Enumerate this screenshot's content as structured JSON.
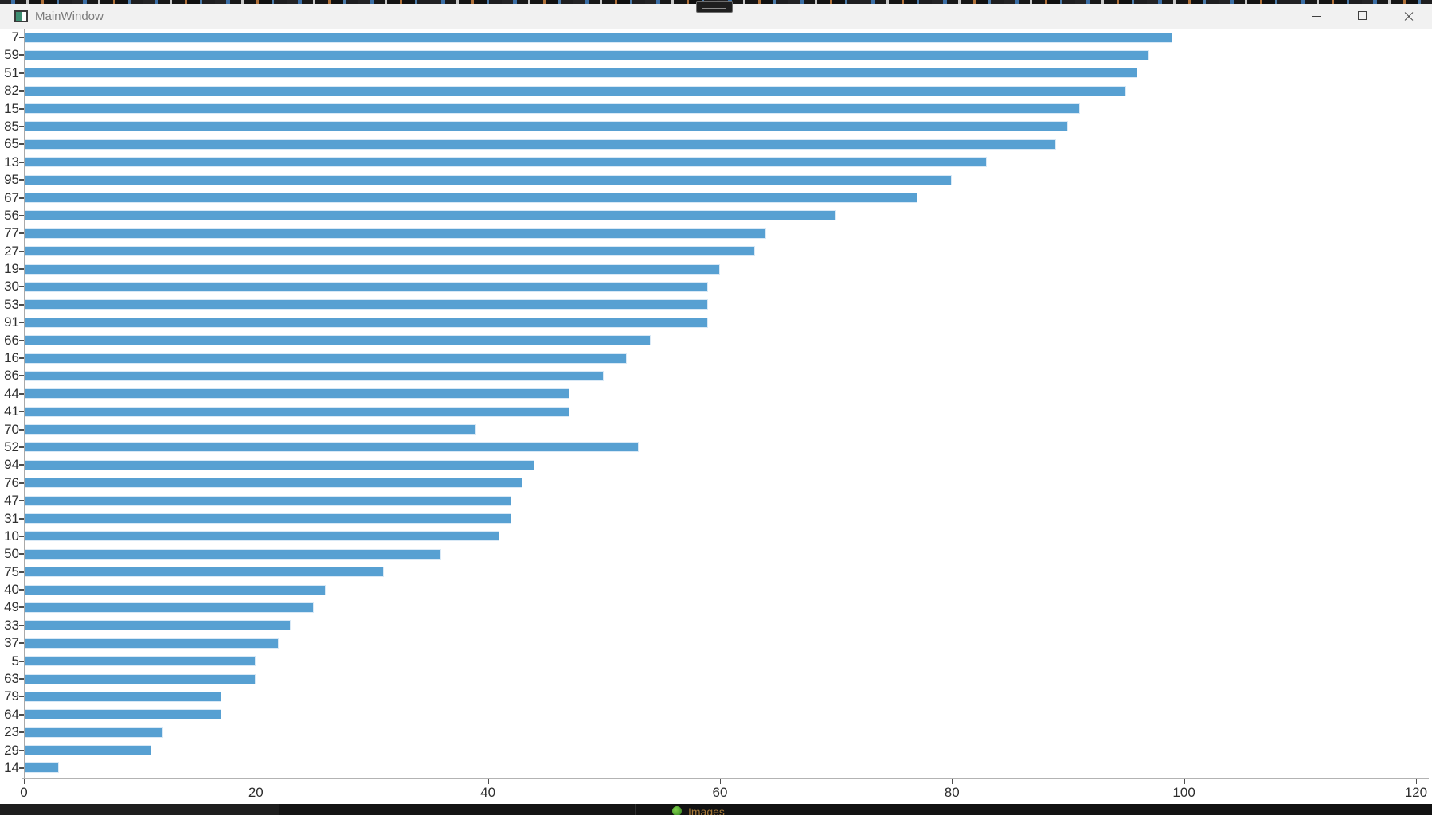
{
  "window": {
    "title": "MainWindow",
    "controls": {
      "minimize_icon": "minimize-icon",
      "maximize_icon": "maximize-icon",
      "close_icon": "close-icon"
    }
  },
  "overlay": {
    "handle_icon": "grab-handle-icon"
  },
  "taskbar": {
    "text": "Images",
    "icon": "leaf-icon"
  },
  "chart_data": {
    "type": "bar",
    "orientation": "horizontal",
    "title": "",
    "xlabel": "",
    "ylabel": "",
    "legend": null,
    "grid": false,
    "xlim": [
      0,
      120.8
    ],
    "x_ticks": [
      0,
      20,
      40,
      60,
      80,
      100,
      120
    ],
    "bar_color": "#57a0d2",
    "bar_edge_color": "#d9e9f6",
    "categories": [
      "7",
      "59",
      "51",
      "82",
      "15",
      "85",
      "65",
      "13",
      "95",
      "67",
      "56",
      "77",
      "27",
      "19",
      "30",
      "53",
      "91",
      "66",
      "16",
      "86",
      "44",
      "41",
      "70",
      "52",
      "94",
      "76",
      "47",
      "31",
      "10",
      "50",
      "75",
      "40",
      "49",
      "33",
      "37",
      "5",
      "63",
      "79",
      "64",
      "23",
      "29",
      "14"
    ],
    "values": [
      99,
      97,
      96,
      95,
      91,
      90,
      89,
      83,
      80,
      77,
      70,
      64,
      63,
      60,
      59,
      59,
      59,
      54,
      52,
      50,
      47,
      47,
      39,
      53,
      44,
      43,
      42,
      42,
      41,
      36,
      31,
      26,
      25,
      23,
      22,
      20,
      20,
      17,
      17,
      12,
      11,
      3
    ]
  }
}
